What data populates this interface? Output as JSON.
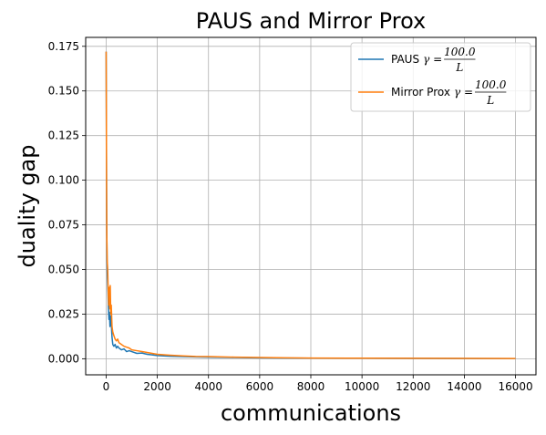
{
  "chart_data": {
    "type": "line",
    "title": "PAUS and Mirror Prox",
    "xlabel": "communications",
    "ylabel": "duality gap",
    "xlim": [
      -800,
      16800
    ],
    "ylim": [
      -0.009,
      0.18
    ],
    "xticks": [
      0,
      2000,
      4000,
      6000,
      8000,
      10000,
      12000,
      14000,
      16000
    ],
    "yticks": [
      0.0,
      0.025,
      0.05,
      0.075,
      0.1,
      0.125,
      0.15,
      0.175
    ],
    "xtick_labels": [
      "0",
      "2000",
      "4000",
      "6000",
      "8000",
      "10000",
      "12000",
      "14000",
      "16000"
    ],
    "ytick_labels": [
      "0.000",
      "0.025",
      "0.050",
      "0.075",
      "0.100",
      "0.125",
      "0.150",
      "0.175"
    ],
    "grid": true,
    "legend": "top-right",
    "series": [
      {
        "name": "PAUS",
        "math_prefix": "γ = ",
        "frac_num": "100.0",
        "frac_den": "L",
        "color": "#1f77b4",
        "points": [
          [
            0,
            0.172
          ],
          [
            10,
            0.12
          ],
          [
            20,
            0.08
          ],
          [
            35,
            0.055
          ],
          [
            50,
            0.045
          ],
          [
            70,
            0.038
          ],
          [
            90,
            0.028
          ],
          [
            110,
            0.022
          ],
          [
            130,
            0.026
          ],
          [
            150,
            0.018
          ],
          [
            170,
            0.024
          ],
          [
            200,
            0.02
          ],
          [
            230,
            0.012
          ],
          [
            260,
            0.008
          ],
          [
            300,
            0.007
          ],
          [
            350,
            0.008
          ],
          [
            400,
            0.006
          ],
          [
            450,
            0.007
          ],
          [
            500,
            0.006
          ],
          [
            600,
            0.005
          ],
          [
            700,
            0.0055
          ],
          [
            800,
            0.004
          ],
          [
            900,
            0.0045
          ],
          [
            1000,
            0.004
          ],
          [
            1200,
            0.003
          ],
          [
            1400,
            0.0032
          ],
          [
            1600,
            0.0025
          ],
          [
            1800,
            0.0022
          ],
          [
            2000,
            0.0018
          ],
          [
            2500,
            0.0014
          ],
          [
            3000,
            0.0012
          ],
          [
            3500,
            0.001
          ],
          [
            4000,
            0.0009
          ],
          [
            5000,
            0.0007
          ],
          [
            6000,
            0.0005
          ],
          [
            7000,
            0.0004
          ],
          [
            8000,
            0.0003
          ],
          [
            10000,
            0.00025
          ],
          [
            12000,
            0.0002
          ],
          [
            14000,
            0.00015
          ],
          [
            16000,
            0.0001
          ]
        ]
      },
      {
        "name": "Mirror Prox",
        "math_prefix": "γ = ",
        "frac_num": "100.0",
        "frac_den": "L",
        "color": "#ff7f0e",
        "points": [
          [
            0,
            0.172
          ],
          [
            8,
            0.14
          ],
          [
            15,
            0.1
          ],
          [
            25,
            0.07
          ],
          [
            40,
            0.055
          ],
          [
            60,
            0.05
          ],
          [
            80,
            0.038
          ],
          [
            100,
            0.03
          ],
          [
            120,
            0.04
          ],
          [
            140,
            0.028
          ],
          [
            160,
            0.041
          ],
          [
            180,
            0.025
          ],
          [
            200,
            0.03
          ],
          [
            230,
            0.018
          ],
          [
            260,
            0.015
          ],
          [
            300,
            0.013
          ],
          [
            350,
            0.011
          ],
          [
            400,
            0.01
          ],
          [
            450,
            0.011
          ],
          [
            500,
            0.009
          ],
          [
            600,
            0.008
          ],
          [
            700,
            0.007
          ],
          [
            800,
            0.0065
          ],
          [
            900,
            0.006
          ],
          [
            1000,
            0.005
          ],
          [
            1200,
            0.0045
          ],
          [
            1400,
            0.004
          ],
          [
            1600,
            0.0035
          ],
          [
            1800,
            0.003
          ],
          [
            2000,
            0.0025
          ],
          [
            2500,
            0.002
          ],
          [
            3000,
            0.0016
          ],
          [
            3500,
            0.0013
          ],
          [
            4000,
            0.0012
          ],
          [
            5000,
            0.0009
          ],
          [
            6000,
            0.0007
          ],
          [
            7000,
            0.0005
          ],
          [
            8000,
            0.0004
          ],
          [
            10000,
            0.0003
          ],
          [
            12000,
            0.00025
          ],
          [
            14000,
            0.0002
          ],
          [
            16000,
            0.00015
          ]
        ]
      }
    ]
  }
}
